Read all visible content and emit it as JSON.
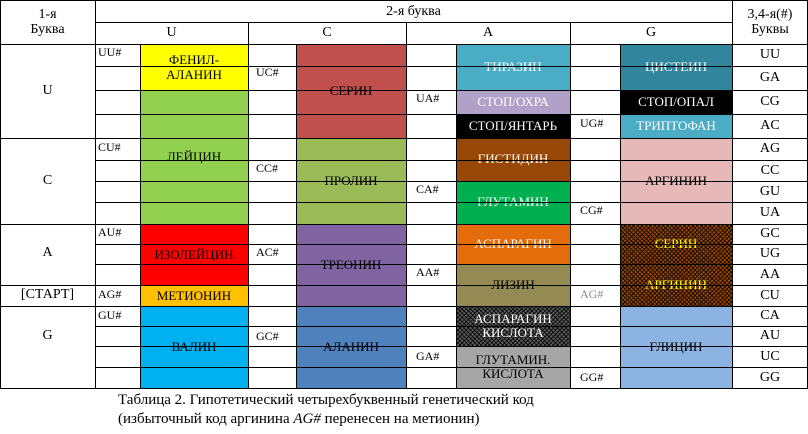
{
  "header": {
    "first_letter_top": "1-я",
    "first_letter_bottom": "Буква",
    "second_letter": "2-я буква",
    "second_columns": [
      "U",
      "C",
      "A",
      "G"
    ],
    "third_top": "3,4-я(#)",
    "third_bottom": "Буквы"
  },
  "rows": [
    {
      "letter": "U",
      "extra": ""
    },
    {
      "letter": "C",
      "extra": ""
    },
    {
      "letter": "A",
      "extra": "[СТАРТ]"
    },
    {
      "letter": "G",
      "extra": ""
    }
  ],
  "codon_labels": [
    "UU#",
    "UC#",
    "UA#",
    "UG#",
    "CU#",
    "CC#",
    "CA#",
    "CG#",
    "AU#",
    "AG#",
    "AC#",
    "AA#",
    "AG#",
    "GU#",
    "GC#",
    "GA#",
    "GG#"
  ],
  "amino": [
    {
      "text": "ФЕНИЛ-\nАЛАНИН",
      "bg": "#ffff00",
      "color": "#000000"
    },
    {
      "text": "ЛЕЙЦИН",
      "bg": "#92d050",
      "color": "#000000"
    },
    {
      "text": "ИЗОЛЕЙЦИН",
      "bg": "#ff0000",
      "color": "#000000"
    },
    {
      "text": "МЕТИОНИН",
      "bg": "#ffc000",
      "color": "#000000"
    },
    {
      "text": "ВАЛИН",
      "bg": "#00b0f0",
      "color": "#000000"
    },
    {
      "text": "СЕРИН",
      "bg": "#c0504d",
      "color": "#000000"
    },
    {
      "text": "ПРОЛИН",
      "bg": "#9bbb59",
      "color": "#000000"
    },
    {
      "text": "ТРЕОНИН",
      "bg": "#8064a2",
      "color": "#000000"
    },
    {
      "text": "АЛАНИН",
      "bg": "#4f81bd",
      "color": "#000000"
    },
    {
      "text": "ТИРАЗИН",
      "bg": "#4bacc6",
      "color": "#ffffff"
    },
    {
      "text": "СТОП/ОХРА",
      "bg": "#b1a0c7",
      "color": "#ffffff"
    },
    {
      "text": "СТОП/ЯНТАРЬ",
      "bg": "#000000",
      "color": "#ffffff"
    },
    {
      "text": "ГИСТИДИН",
      "bg": "#974706",
      "color": "#ffffff"
    },
    {
      "text": "ГЛУТАМИН",
      "bg": "#00b050",
      "color": "#ffffff"
    },
    {
      "text": "АСПАРАГИН",
      "bg": "#e46c0a",
      "color": "#ffffff"
    },
    {
      "text": "ЛИЗИН",
      "bg": "#948a54",
      "color": "#000000"
    },
    {
      "text": "АСПАРАГИН\nКИСЛОТА",
      "bg": "#5a5a5a",
      "color": "#ffffff"
    },
    {
      "text": "ГЛУТАМИН.\nКИСЛОТА",
      "bg": "#a6a6a6",
      "color": "#000000"
    },
    {
      "text": "ЦИСТЕИН",
      "bg": "#31859c",
      "color": "#ffffff"
    },
    {
      "text": "СТОП/ОПАЛ",
      "bg": "#000000",
      "color": "#ffffff"
    },
    {
      "text": "ТРИПТОФАН",
      "bg": "#4bacc6",
      "color": "#ffffff"
    },
    {
      "text": "АРГИНИН",
      "bg": "#e6b9b8",
      "color": "#000000"
    },
    {
      "text": "СЕРИН",
      "bg": "#974706",
      "color": "#ffff00"
    },
    {
      "text": "АРГИНИН",
      "bg": "#974706",
      "color": "#ffff00"
    },
    {
      "text": "ГЛИЦИН",
      "bg": "#8db3e2",
      "color": "#000000"
    }
  ],
  "third_letters": [
    "UU",
    "GA",
    "CG",
    "AC",
    "AG",
    "CC",
    "GU",
    "UA",
    "GC",
    "UG",
    "AA",
    "CU",
    "CA",
    "AU",
    "UC",
    "GG"
  ],
  "caption": {
    "line1": "Таблица 2. Гипотетический  четырехбуквенный генетический  код",
    "line2_pre": "(избыточный код аргинина ",
    "line2_em": "AG#",
    "line2_post": " перенесен  на метионин)"
  }
}
